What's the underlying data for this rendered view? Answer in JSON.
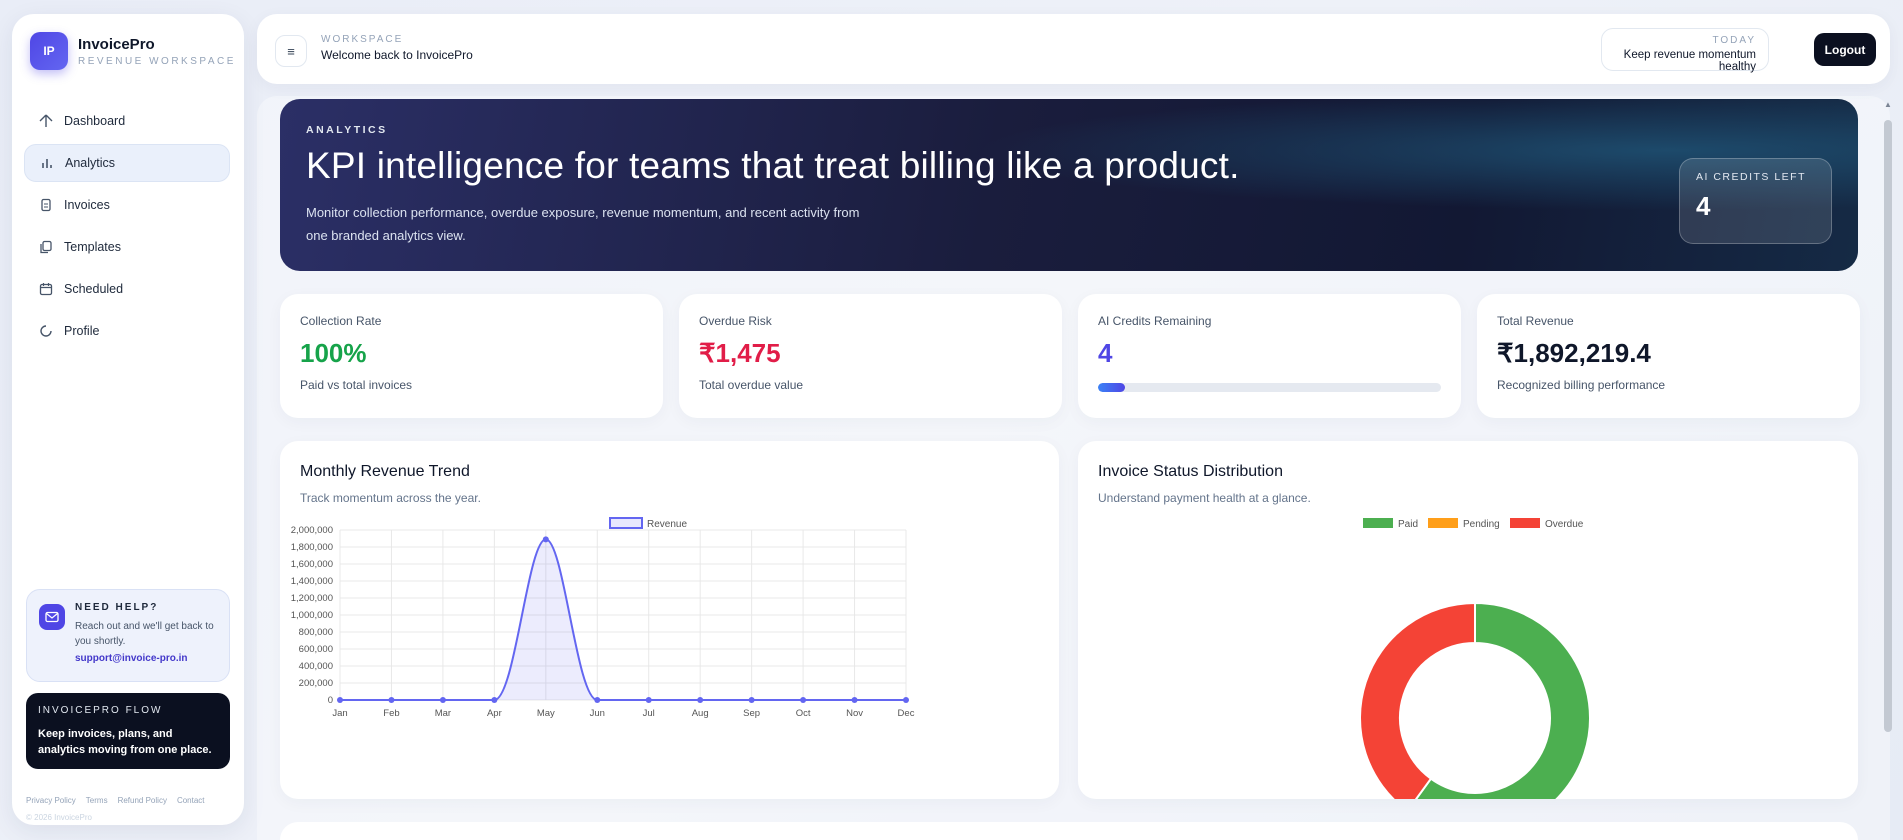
{
  "brand": {
    "logo_text": "IP",
    "name": "InvoicePro",
    "subtitle": "REVENUE WORKSPACE"
  },
  "nav": [
    {
      "label": "Dashboard",
      "icon": "home-icon",
      "active": false
    },
    {
      "label": "Analytics",
      "icon": "bar-chart-icon",
      "active": true
    },
    {
      "label": "Invoices",
      "icon": "document-icon",
      "active": false
    },
    {
      "label": "Templates",
      "icon": "copy-icon",
      "active": false
    },
    {
      "label": "Scheduled",
      "icon": "calendar-icon",
      "active": false
    },
    {
      "label": "Profile",
      "icon": "profile-icon",
      "active": false
    }
  ],
  "help": {
    "title": "NEED HELP?",
    "text": "Reach out and we'll get back to you shortly.",
    "email": "support@invoice-pro.in",
    "icon": "mail-icon"
  },
  "flow": {
    "title": "INVOICEPRO FLOW",
    "text": "Keep invoices, plans, and analytics moving from one place."
  },
  "footer": {
    "links": [
      "Privacy Policy",
      "Terms",
      "Refund Policy",
      "Contact"
    ],
    "copyright": "© 2026 InvoicePro"
  },
  "header": {
    "menu_icon": "≡",
    "workspace_label": "WORKSPACE",
    "welcome": "Welcome back to InvoicePro",
    "today_label": "TODAY",
    "today_text": "Keep revenue momentum healthy",
    "logout_label": "Logout"
  },
  "hero": {
    "eyebrow": "ANALYTICS",
    "title": "KPI intelligence for teams that treat billing like a product.",
    "description": "Monitor collection performance, overdue exposure, revenue momentum, and recent activity from one branded analytics view.",
    "credits_label": "AI CREDITS LEFT",
    "credits_value": "4"
  },
  "kpis": [
    {
      "label": "Collection Rate",
      "value": "100%",
      "sub": "Paid vs total invoices",
      "color": "#16a34a"
    },
    {
      "label": "Overdue Risk",
      "value": "₹1,475",
      "sub": "Total overdue value",
      "color": "#e11d48"
    },
    {
      "label": "AI Credits Remaining",
      "value": "4",
      "progress": 0.08,
      "color": "#4f46e5"
    },
    {
      "label": "Total Revenue",
      "value": "₹1,892,219.4",
      "sub": "Recognized billing performance",
      "color": "#0f172a"
    }
  ],
  "revenue_card": {
    "title": "Monthly Revenue Trend",
    "subtitle": "Track momentum across the year."
  },
  "status_card": {
    "title": "Invoice Status Distribution",
    "subtitle": "Understand payment health at a glance."
  },
  "chart_data": [
    {
      "type": "line",
      "title": "",
      "series": [
        {
          "name": "Revenue",
          "color": "#6366f1",
          "values": [
            0,
            0,
            0,
            0,
            1890000,
            0,
            0,
            0,
            0,
            0,
            0,
            0
          ]
        }
      ],
      "categories": [
        "Jan",
        "Feb",
        "Mar",
        "Apr",
        "May",
        "Jun",
        "Jul",
        "Aug",
        "Sep",
        "Oct",
        "Nov",
        "Dec"
      ],
      "ylim": [
        0,
        2000000
      ],
      "yticks": [
        "2,000,000",
        "1,800,000",
        "1,600,000",
        "1,400,000",
        "1,200,000",
        "1,000,000",
        "800,000",
        "600,000",
        "400,000",
        "200,000",
        "0"
      ],
      "legend": "top-center",
      "grid": true
    },
    {
      "type": "pie",
      "title": "",
      "labels": [
        "Paid",
        "Pending",
        "Overdue"
      ],
      "values": [
        60,
        0,
        40
      ],
      "colors": [
        "#4caf50",
        "#ff9f1a",
        "#f44336"
      ],
      "legend": "top-center"
    }
  ]
}
